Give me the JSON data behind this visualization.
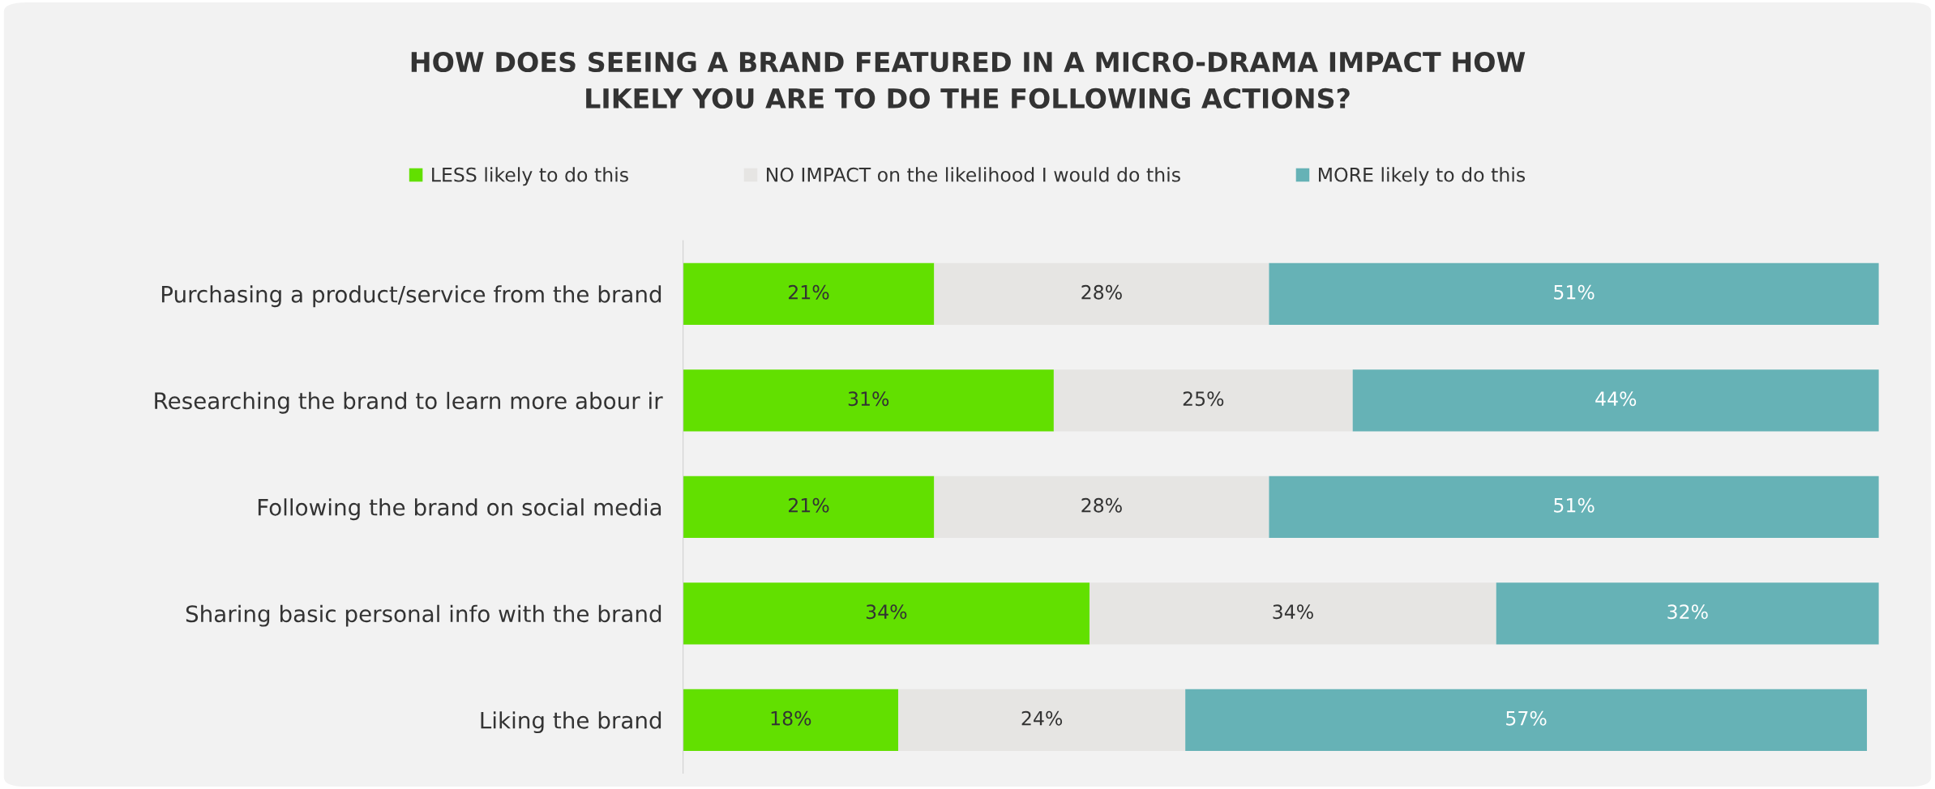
{
  "chart_data": {
    "type": "bar",
    "orientation": "horizontal",
    "stacked": true,
    "title": "HOW DOES SEEING A BRAND FEATURED IN A MICRO-DRAMA IMPACT HOW LIKELY YOU ARE TO DO THE FOLLOWING ACTIONS?",
    "categories": [
      "Purchasing a product/service from the brand",
      "Researching the brand to learn more abour ir",
      "Following the brand on social media",
      "Sharing basic personal info with the brand",
      "Liking the brand"
    ],
    "series": [
      {
        "name": "LESS likely to do this",
        "color": "#62e000",
        "values": [
          21,
          31,
          21,
          34,
          18
        ],
        "value_labels": [
          "21%",
          "31%",
          "21%",
          "34%",
          "18%"
        ]
      },
      {
        "name": "NO IMPACT on the likelihood I would do this",
        "color": "#e6e5e3",
        "values": [
          28,
          25,
          28,
          34,
          24
        ],
        "value_labels": [
          "28%",
          "25%",
          "28%",
          "34%",
          "24%"
        ]
      },
      {
        "name": "MORE likely to do this",
        "color": "#66b2b6",
        "values": [
          51,
          44,
          51,
          32,
          57
        ],
        "value_labels": [
          "51%",
          "44%",
          "51%",
          "32%",
          "57%"
        ]
      }
    ],
    "legend": "top",
    "grid": false
  }
}
